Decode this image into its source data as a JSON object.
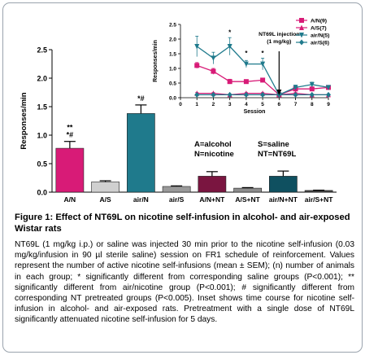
{
  "caption": {
    "title": "Figure 1: Effect of NT69L on nicotine self-infusion in alcohol- and air-exposed Wistar rats",
    "body": "NT69L (1 mg/kg i.p.) or saline was injected 30 min prior to the nicotine self-infusion (0.03 mg/kg/infusion in 90 µl sterile saline) session on FR1 schedule of reinforcement. Values represent the number of active nicotine self-infusions (mean ± SEM); (n) number of animals in each group; * significantly different from corresponding saline groups (P<0.001); ** significantly different from air/nicotine group (P<0.001); # significantly different from corresponding NT pretreated groups (P<0.005). Inset shows time course for nicotine self-infusion in alcohol- and air-exposed rats. Pretreatment with a single dose of NT69L significantly attenuated nicotine self-infusion for 5 days."
  },
  "chart_data": [
    {
      "type": "bar",
      "ylabel": "Responses/min",
      "ylim": [
        0,
        2.5
      ],
      "yticks": [
        0.0,
        0.5,
        1.0,
        1.5,
        2.0,
        2.5
      ],
      "ytick_labels": [
        "0.0",
        "0.5",
        "1.0",
        "1.5",
        "2.0",
        "2.5"
      ],
      "categories": [
        "A/N",
        "A/S",
        "air/N",
        "air/S",
        "A/N+NT",
        "A/S+NT",
        "air/N+NT",
        "air/S+NT"
      ],
      "values": [
        0.77,
        0.18,
        1.38,
        0.1,
        0.28,
        0.07,
        0.28,
        0.03
      ],
      "errors": [
        0.12,
        0.02,
        0.15,
        0.01,
        0.08,
        0.01,
        0.09,
        0.005
      ],
      "colors": [
        "#d81b77",
        "#d0d0d0",
        "#1f7a8c",
        "#9a9a9a",
        "#7a1540",
        "#8c8c8c",
        "#0f5060",
        "#444444"
      ],
      "annotations": [
        {
          "category": "A/N",
          "lines": [
            "**",
            "*#"
          ]
        },
        {
          "category": "air/N",
          "lines": [
            "*#"
          ]
        }
      ],
      "legend_text": [
        {
          "text": "A=alcohol",
          "anchor": "left"
        },
        {
          "text": "N=nicotine",
          "anchor": "left"
        },
        {
          "text": "S=saline",
          "anchor": "right"
        },
        {
          "text": "NT=NT69L",
          "anchor": "right"
        }
      ]
    },
    {
      "type": "line",
      "inset": true,
      "xlabel": "Session",
      "ylabel": "Responses/min",
      "xlim": [
        0,
        9
      ],
      "ylim": [
        0,
        2.5
      ],
      "x": [
        1,
        2,
        3,
        4,
        5,
        6,
        7,
        8,
        9
      ],
      "yticks": [
        0.0,
        0.5,
        1.0,
        1.5,
        2.0,
        2.5
      ],
      "ytick_labels": [
        "0.0",
        "0.5",
        "1.0",
        "1.5",
        "2.0",
        "2.5"
      ],
      "xticks": [
        0,
        1,
        2,
        3,
        4,
        5,
        6,
        7,
        8,
        9
      ],
      "xtick_labels": [
        "0",
        "1",
        "2",
        "3",
        "4",
        "5",
        "6",
        "7",
        "8",
        "9"
      ],
      "series": [
        {
          "name": "A/N(9)",
          "color": "#d81b77",
          "marker": "square",
          "values": [
            1.1,
            0.9,
            0.55,
            0.55,
            0.6,
            0.1,
            0.3,
            0.3,
            0.35
          ],
          "errors": [
            0.1,
            0.1,
            0.08,
            0.06,
            0.06,
            0.02,
            0.05,
            0.05,
            0.05
          ]
        },
        {
          "name": "A/S(7)",
          "color": "#d81b77",
          "marker": "triangle-up",
          "values": [
            0.15,
            0.15,
            0.1,
            0.15,
            0.15,
            0.1,
            0.15,
            0.1,
            0.1
          ],
          "errors": [
            0.03,
            0.03,
            0.02,
            0.03,
            0.03,
            0.02,
            0.03,
            0.02,
            0.02
          ]
        },
        {
          "name": "air/N(5)",
          "color": "#1f7a8c",
          "marker": "triangle-down",
          "values": [
            1.75,
            1.35,
            1.75,
            1.15,
            1.15,
            0.1,
            0.35,
            0.45,
            0.35
          ],
          "errors": [
            0.35,
            0.2,
            0.3,
            0.12,
            0.2,
            0.03,
            0.08,
            0.08,
            0.06
          ]
        },
        {
          "name": "air/S(6)",
          "color": "#1f7a8c",
          "marker": "diamond",
          "values": [
            0.1,
            0.1,
            0.1,
            0.1,
            0.1,
            0.1,
            0.1,
            0.1,
            0.1
          ],
          "errors": [
            0.02,
            0.02,
            0.02,
            0.02,
            0.02,
            0.02,
            0.02,
            0.02,
            0.02
          ]
        }
      ],
      "stars": [
        {
          "x": 3,
          "text": "*",
          "y": 2.15
        },
        {
          "x": 4,
          "text": "*",
          "y": 1.45
        },
        {
          "x": 5,
          "text": "*",
          "y": 1.45
        }
      ],
      "injection": {
        "x": 6,
        "text_lines": [
          "NT69L injection",
          "(1 mg/kg)"
        ]
      },
      "legend_position": "right"
    }
  ]
}
